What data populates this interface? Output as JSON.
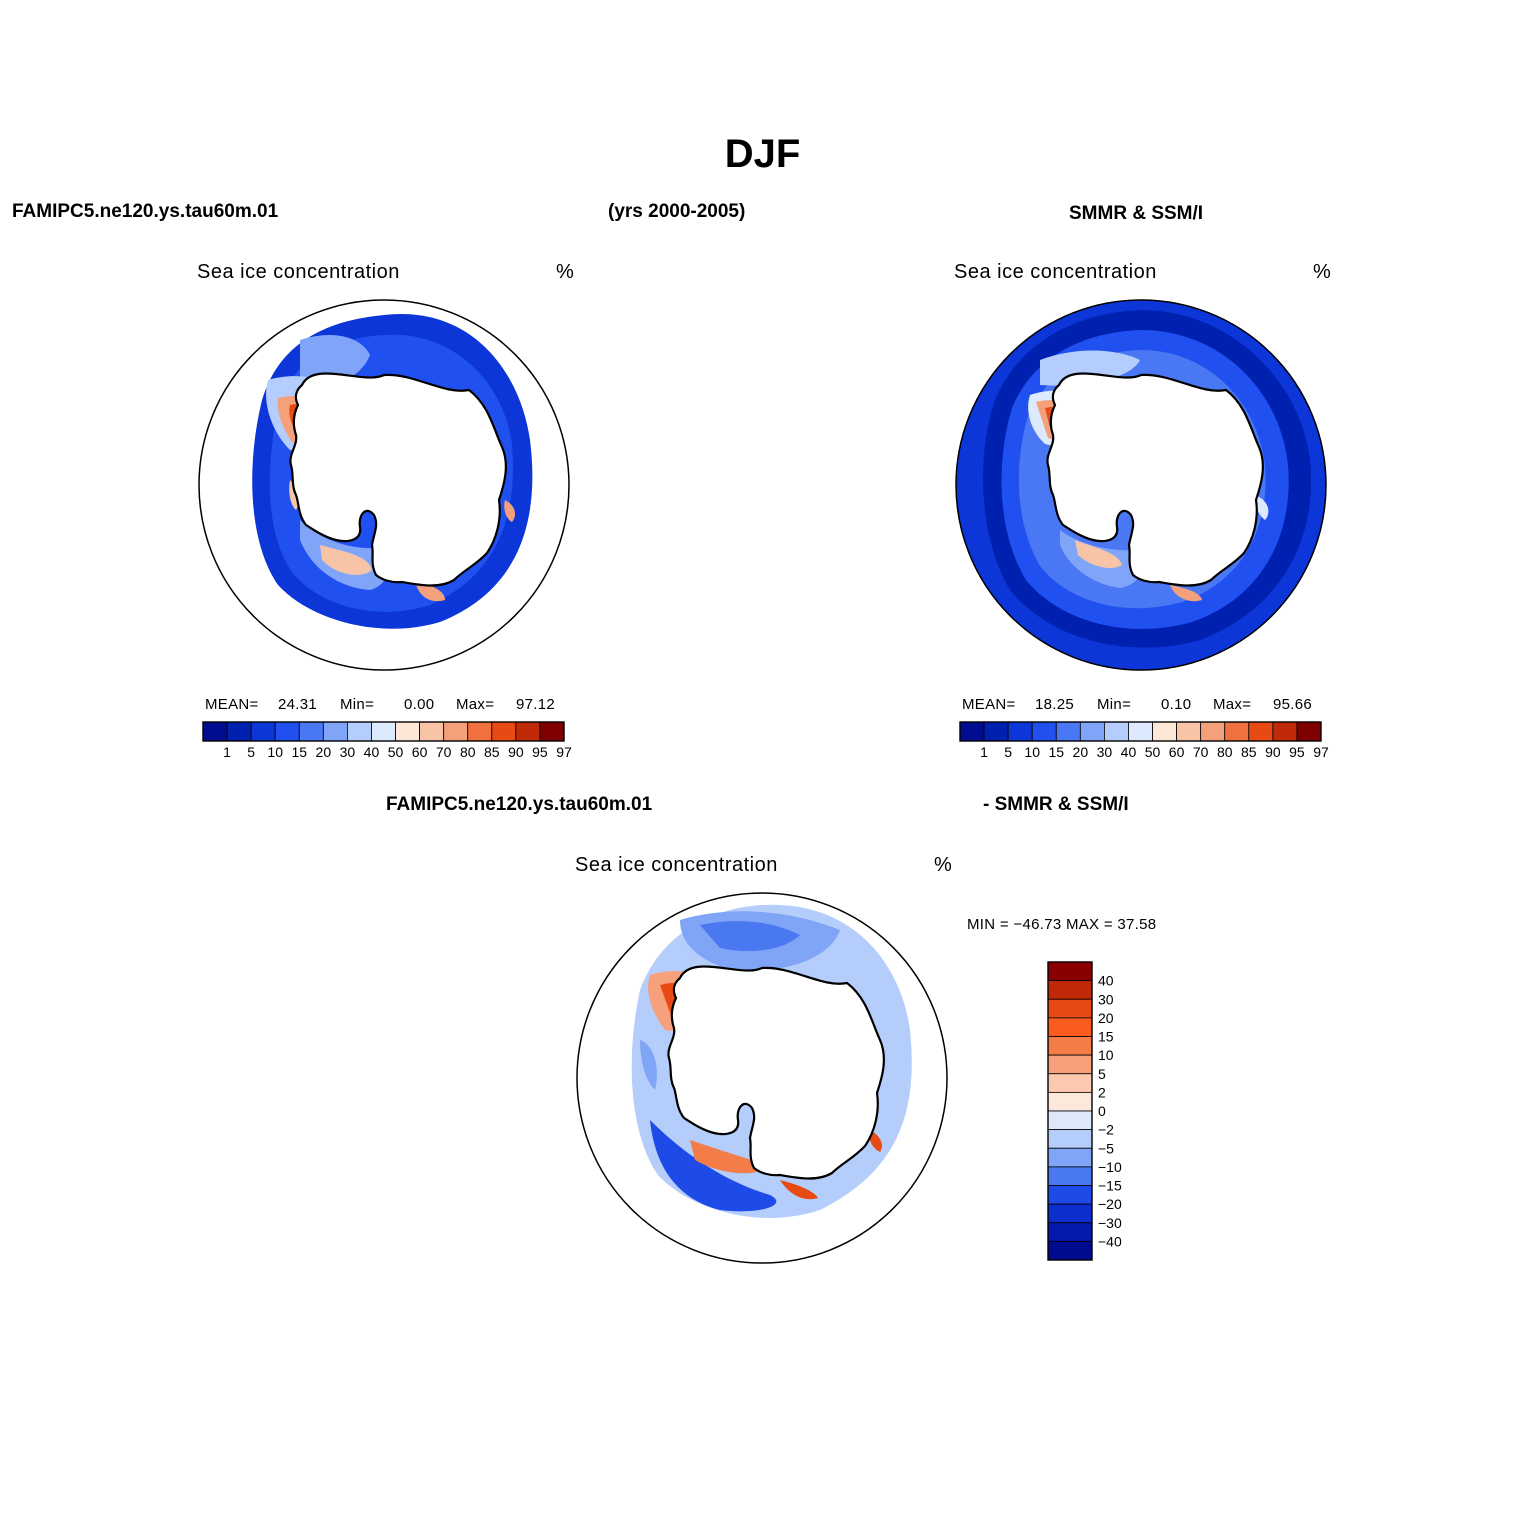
{
  "figure": {
    "title": "DJF",
    "model_name": "FAMIPC5.ne120.ys.tau60m.01",
    "years": "(yrs 2000-2005)",
    "obs_name": "SMMR & SSM/I",
    "diff_left": "FAMIPC5.ne120.ys.tau60m.01",
    "diff_right": "- SMMR & SSM/I"
  },
  "panels": [
    {
      "id": "model",
      "title": "Sea ice concentration",
      "units": "%",
      "mean_label": "MEAN=",
      "mean": "24.31",
      "min_label": "Min=",
      "min": "0.00",
      "max_label": "Max=",
      "max": "97.12"
    },
    {
      "id": "obs",
      "title": "Sea ice concentration",
      "units": "%",
      "mean_label": "MEAN=",
      "mean": "18.25",
      "min_label": "Min=",
      "min": "0.10",
      "max_label": "Max=",
      "max": "95.66"
    },
    {
      "id": "diff",
      "title": "Sea ice concentration",
      "units": "%",
      "minmax_text": "MIN = −46.73 MAX =   37.58"
    }
  ],
  "colorbars": {
    "concentration": {
      "levels": [
        "1",
        "5",
        "10",
        "15",
        "20",
        "30",
        "40",
        "50",
        "60",
        "70",
        "80",
        "85",
        "90",
        "95",
        "97"
      ],
      "colors": [
        "#000d90",
        "#0020b0",
        "#0d36d8",
        "#2050f0",
        "#4a78f4",
        "#80a4f8",
        "#b4cdfc",
        "#dde9fc",
        "#fde8d8",
        "#f8c4a8",
        "#f4a07a",
        "#f07040",
        "#e84a14",
        "#c02a08",
        "#7e0000"
      ]
    },
    "difference": {
      "levels": [
        "40",
        "30",
        "20",
        "15",
        "10",
        "5",
        "2",
        "0",
        "−2",
        "−5",
        "−10",
        "−15",
        "−20",
        "−30",
        "−40"
      ],
      "colors": [
        "#8a0000",
        "#c02808",
        "#e84a14",
        "#fa5c20",
        "#f47c48",
        "#f6a07c",
        "#fcc8b0",
        "#fde8dc",
        "#dde9fa",
        "#b4cdfa",
        "#80a4f6",
        "#4a78f0",
        "#1e4ae8",
        "#0d2ecc",
        "#041aaa",
        "#000c90"
      ]
    }
  }
}
